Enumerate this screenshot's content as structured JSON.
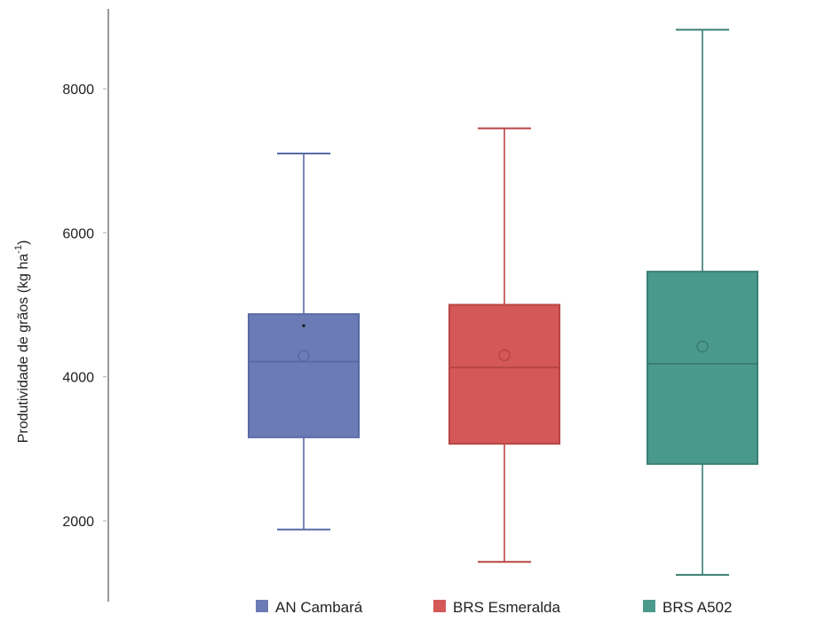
{
  "chart_data": {
    "type": "boxplot",
    "ylabel_main": "Produtividade de grãos (kg ha",
    "ylabel_sup": "-1",
    "ylabel_close": ")",
    "ylim": [
      700,
      9000
    ],
    "yticks": [
      2000,
      4000,
      6000,
      8000
    ],
    "ytick_labels": [
      "2000",
      "4000",
      "6000",
      "8000"
    ],
    "legend_position": "bottom",
    "series": [
      {
        "name": "AN Cambará",
        "color": "#6b7bb5",
        "edge": "#5a6aa6",
        "min": 1880,
        "q1": 3160,
        "median": 4210,
        "q3": 4870,
        "max": 7100,
        "mean": 4290,
        "outliers": [
          4710
        ]
      },
      {
        "name": "BRS Esmeralda",
        "color": "#d45858",
        "edge": "#b94545",
        "min": 1430,
        "q1": 3070,
        "median": 4130,
        "q3": 5000,
        "max": 7450,
        "mean": 4300,
        "outliers": []
      },
      {
        "name": "BRS A502",
        "color": "#4a9a8c",
        "edge": "#3a7f73",
        "min": 1250,
        "q1": 2790,
        "median": 4180,
        "q3": 5460,
        "max": 8820,
        "mean": 4420,
        "outliers": []
      }
    ]
  }
}
